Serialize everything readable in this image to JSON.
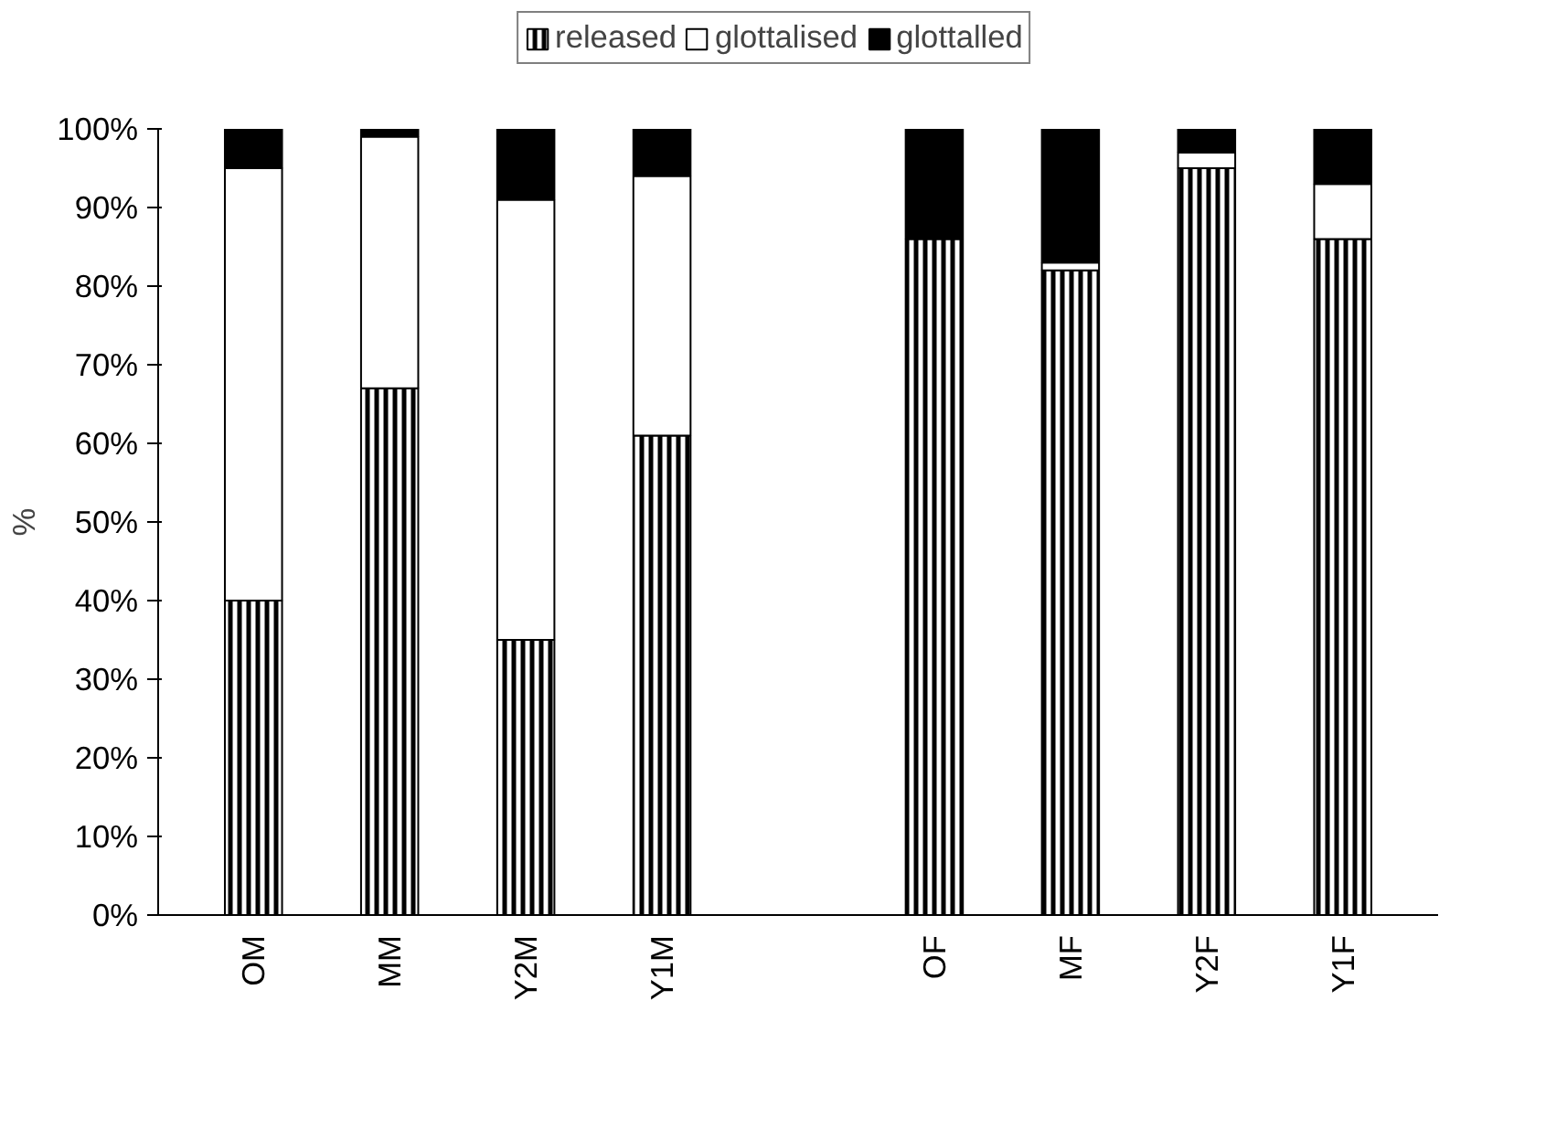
{
  "chart_data": {
    "type": "bar",
    "stacked": true,
    "ylabel": "%",
    "categories": [
      "OM",
      "MM",
      "Y2M",
      "Y1M",
      null,
      "OF",
      "MF",
      "Y2F",
      "Y1F"
    ],
    "series": [
      {
        "name": "released",
        "color": "#000000",
        "values": [
          40,
          67,
          35,
          61,
          null,
          86,
          82,
          95,
          86
        ]
      },
      {
        "name": "glottalised",
        "color": "#ffffff",
        "values": [
          55,
          32,
          56,
          33,
          null,
          null,
          1,
          2,
          7
        ]
      },
      {
        "name": "glottalled",
        "color": "#000000",
        "values": [
          5,
          1,
          9,
          6,
          null,
          14,
          17,
          3,
          7
        ]
      }
    ],
    "ylim": [
      0,
      100
    ],
    "yticks": [
      {
        "value": 0,
        "label": "0%"
      },
      {
        "value": 10,
        "label": "10%"
      },
      {
        "value": 20,
        "label": "20%"
      },
      {
        "value": 30,
        "label": "30%"
      },
      {
        "value": 40,
        "label": "40%"
      },
      {
        "value": 50,
        "label": "50%"
      },
      {
        "value": 60,
        "label": "60%"
      },
      {
        "value": 70,
        "label": "70%"
      },
      {
        "value": 80,
        "label": "80%"
      },
      {
        "value": 90,
        "label": "90%"
      },
      {
        "value": 100,
        "label": "100%"
      }
    ],
    "grid": false,
    "legend": "top"
  }
}
